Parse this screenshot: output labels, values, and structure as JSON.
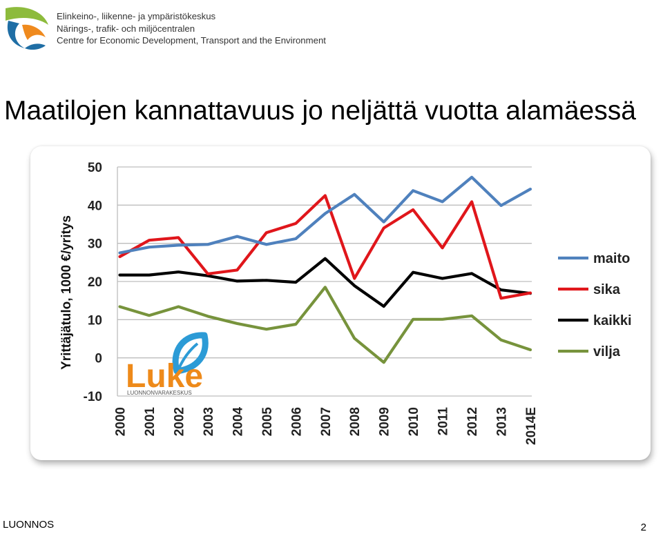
{
  "header": {
    "org_line_fi": "Elinkeino-, liikenne- ja ympäristökeskus",
    "org_line_sv": "Närings-, trafik- och miljöcentralen",
    "org_line_en": "Centre for Economic Development, Transport and the Environment"
  },
  "title": "Maatilojen kannattavuus jo neljättä vuotta alamäessä",
  "luke_logo": {
    "name": "Luke",
    "tagline": "LUONNONVARAKESKUS"
  },
  "footer": {
    "left": "LUONNOS",
    "page": "2"
  },
  "colors": {
    "maito": "#4f81bd",
    "sika": "#e0161b",
    "kaikki": "#000000",
    "vilja": "#77933c",
    "ely_green": "#8dbb3c",
    "ely_blue": "#1f6ea5",
    "ely_orange": "#ef8a1e",
    "luke_orange": "#ee8a1a",
    "luke_blue": "#2c9bd6"
  },
  "chart_data": {
    "type": "line",
    "title": "",
    "xlabel": "",
    "ylabel": "Yrittäjätulo, 1000 €/yritys",
    "ylim": [
      -10,
      50
    ],
    "yticks": [
      -10,
      0,
      10,
      20,
      30,
      40,
      50
    ],
    "grid": true,
    "legend_position": "right",
    "categories": [
      "2000",
      "2001",
      "2002",
      "2003",
      "2004",
      "2005",
      "2006",
      "2007",
      "2008",
      "2009",
      "2010",
      "2011",
      "2012",
      "2013",
      "2014E"
    ],
    "series": [
      {
        "name": "maito",
        "values": [
          27.5,
          29,
          29.5,
          29.7,
          31.8,
          29.7,
          31.2,
          37.8,
          42.8,
          35.6,
          43.8,
          40.9,
          47.3,
          39.9,
          44.2
        ]
      },
      {
        "name": "sika",
        "values": [
          26.5,
          30.8,
          31.5,
          22,
          23,
          32.8,
          35.2,
          42.5,
          20.8,
          34,
          38.8,
          28.8,
          40.9,
          15.6,
          17
        ]
      },
      {
        "name": "kaikki",
        "values": [
          21.7,
          21.7,
          22.5,
          21.5,
          20.1,
          20.3,
          19.8,
          26,
          18.9,
          13.5,
          22.4,
          20.8,
          22.1,
          17.8,
          16.9
        ]
      },
      {
        "name": "vilja",
        "values": [
          13.4,
          11.1,
          13.4,
          10.9,
          9,
          7.5,
          8.8,
          18.5,
          5.1,
          -1.2,
          10.1,
          10.1,
          11,
          4.7,
          2.1
        ]
      }
    ]
  }
}
